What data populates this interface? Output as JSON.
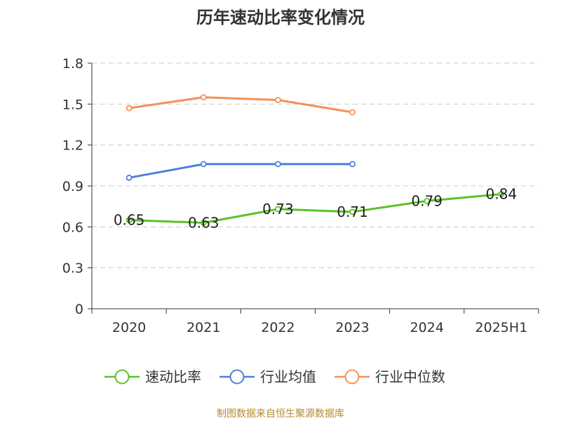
{
  "chart_data": {
    "type": "line",
    "title": "历年速动比率变化情况",
    "categories": [
      "2020",
      "2021",
      "2022",
      "2023",
      "2024",
      "2025H1"
    ],
    "yticks": [
      "0",
      "0.3",
      "0.6",
      "0.9",
      "1.2",
      "1.5",
      "1.8"
    ],
    "ylim": [
      0,
      1.8
    ],
    "grid": true,
    "legend_position": "bottom",
    "series": [
      {
        "name": "速动比率",
        "color": "#5bc22a",
        "values": [
          0.65,
          0.63,
          0.73,
          0.71,
          0.79,
          0.84
        ],
        "labels": [
          "0.65",
          "0.63",
          "0.73",
          "0.71",
          "0.79",
          "0.84"
        ]
      },
      {
        "name": "行业均值",
        "color": "#4f7fd9",
        "values": [
          0.96,
          1.06,
          1.06,
          1.06,
          null,
          null
        ]
      },
      {
        "name": "行业中位数",
        "color": "#f59057",
        "values": [
          1.47,
          1.55,
          1.53,
          1.44,
          null,
          null
        ]
      }
    ]
  },
  "source_note": "制图数据来自恒生聚源数据库"
}
